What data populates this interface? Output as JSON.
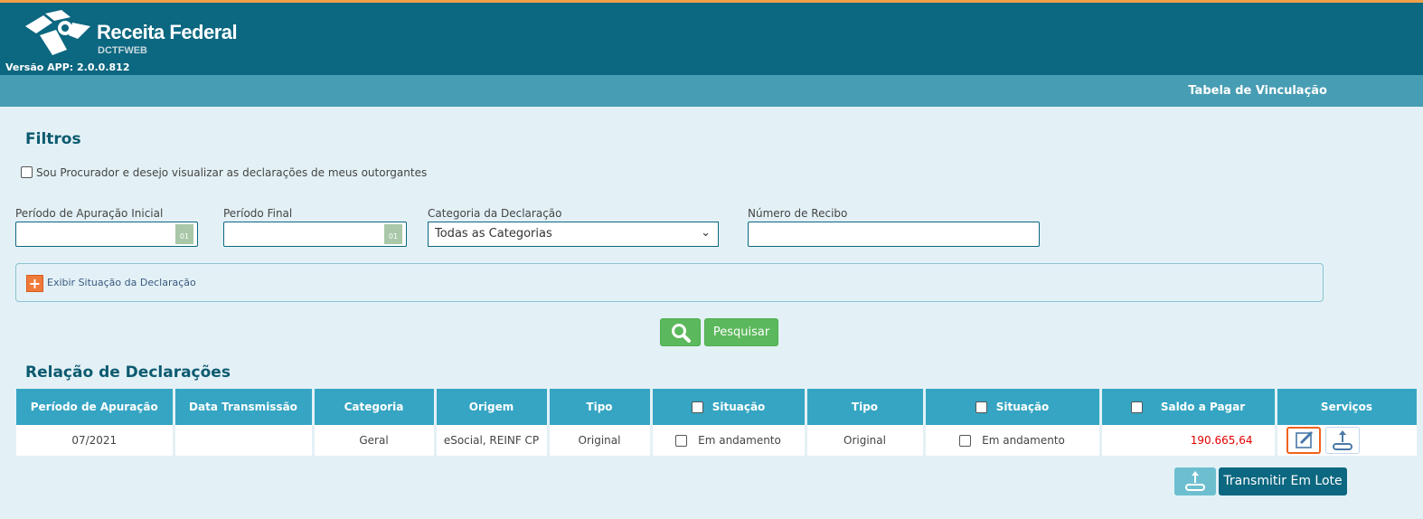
{
  "header": {
    "brand": "Receita Federal",
    "sub": "DCTFWEB",
    "version": "Versão APP: 2.0.0.812",
    "page": "Tabela de Vinculação"
  },
  "filters": {
    "title": "Filtros",
    "procurador": "Sou Procurador e desejo visualizar as declarações de meus outorgantes",
    "periodo_inicial": "Período de Apuração Inicial",
    "periodo_final": "Período Final",
    "categoria": "Categoria da Declaração",
    "categoria_value": "Todas as Categorias",
    "recibo": "Número de Recibo",
    "calendar_text": "01",
    "exibir": "Exibir Situação da Declaração",
    "pesquisar": "Pesquisar"
  },
  "list": {
    "title": "Relação de Declarações",
    "headers": [
      "Período de Apuração",
      "Data Transmissão",
      "Categoria",
      "Origem",
      "Tipo",
      "Situação",
      "Tipo",
      "Situação",
      "Saldo a Pagar",
      "Serviços"
    ],
    "rows": [
      {
        "periodo": "07/2021",
        "data": "",
        "categoria": "Geral",
        "origem": "eSocial, REINF CP",
        "tipo1": "Original",
        "sit1": "Em andamento",
        "tipo2": "Original",
        "sit2": "Em andamento",
        "saldo": "190.665,64"
      }
    ],
    "transmitir": "Transmitir Em Lote"
  },
  "colors": {
    "header": "#0c6780",
    "subbar": "#479db3",
    "table_header": "#35a5c3",
    "accent": "#5cb85c",
    "saldo": "#e00000"
  }
}
